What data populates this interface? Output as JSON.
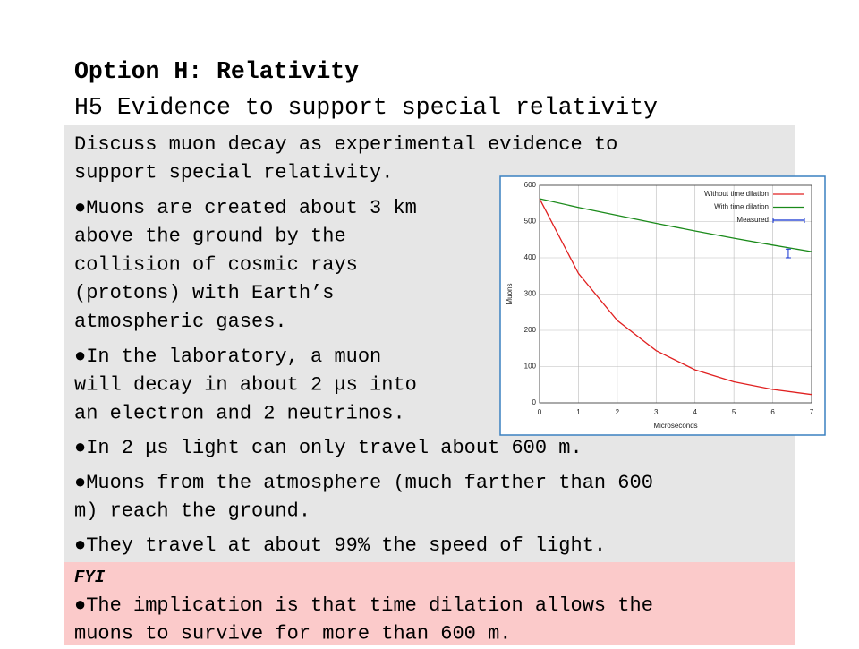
{
  "header": {
    "title": "Option H: Relativity",
    "subtitle": "H5 Evidence to support special relativity"
  },
  "body": {
    "intro": [
      "Discuss muon decay as experimental evidence to",
      "support special relativity."
    ],
    "bullets": [
      [
        "●Muons are created about 3 km",
        "above the ground by the",
        "collision of cosmic rays",
        "(protons) with Earth’s",
        "atmospheric gases."
      ],
      [
        "●In the laboratory, a muon",
        "will decay in about 2 μs into",
        "an electron and 2 neutrinos."
      ],
      [
        "●In 2 μs light can only travel about 600 m."
      ],
      [
        "●Muons from the atmosphere (much farther than 600",
        "m) reach the ground."
      ],
      [
        "●They travel at about 99% the speed of light."
      ]
    ]
  },
  "fyi": {
    "label": "FYI",
    "lines": [
      "●The implication is that time dilation allows the",
      "muons to survive for more than 600 m."
    ]
  },
  "chart_data": {
    "type": "line",
    "xlabel": "Microseconds",
    "ylabel": "Muons",
    "x": [
      0,
      1,
      2,
      3,
      4,
      5,
      6,
      7
    ],
    "series": [
      {
        "name": "Without time dilation",
        "color": "#e02020",
        "values": [
          563,
          357,
          227,
          144,
          91,
          58,
          37,
          23
        ]
      },
      {
        "name": "With time dilation",
        "color": "#1a8a1a",
        "values": [
          563,
          539,
          517,
          495,
          474,
          454,
          435,
          417
        ]
      }
    ],
    "measured": {
      "name": "Measured",
      "color": "#1030d0",
      "x": 6.4,
      "value": 412,
      "error": 12
    },
    "xlim": [
      0,
      7
    ],
    "xticks": [
      0,
      1,
      2,
      3,
      4,
      5,
      6,
      7
    ],
    "ylim": [
      0,
      600
    ],
    "yticks": [
      0,
      100,
      200,
      300,
      400,
      500,
      600
    ],
    "grid": true,
    "legend": "upper-right"
  }
}
